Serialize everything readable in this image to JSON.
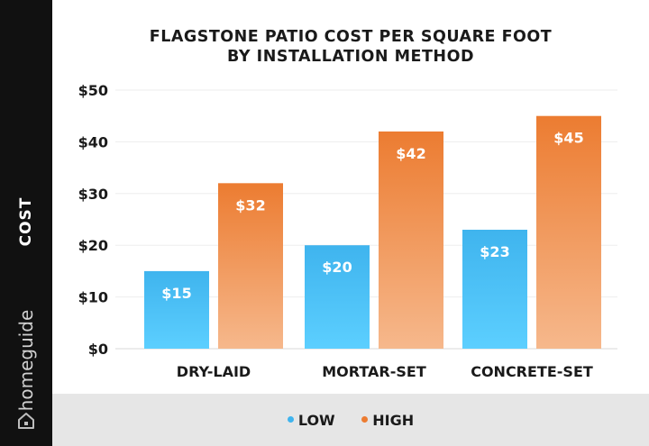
{
  "sidebar": {
    "axis_label": "COST",
    "brand": "homeguide",
    "brand_icon": "house-icon"
  },
  "colors": {
    "low_top": "#3fb4ee",
    "low_bottom": "#5ccfff",
    "high_top": "#ec7c31",
    "high_bottom": "#f6b88c",
    "sidebar": "#111111",
    "legend_bg": "#e6e6e6"
  },
  "chart_data": {
    "type": "bar",
    "title": "FLAGSTONE PATIO COST PER SQUARE FOOT",
    "subtitle": "BY INSTALLATION METHOD",
    "ylabel": "COST",
    "categories": [
      "DRY-LAID",
      "MORTAR-SET",
      "CONCRETE-SET"
    ],
    "series": [
      {
        "name": "LOW",
        "values": [
          15,
          20,
          23
        ],
        "labels": [
          "$15",
          "$20",
          "$23"
        ]
      },
      {
        "name": "HIGH",
        "values": [
          32,
          42,
          45
        ],
        "labels": [
          "$32",
          "$42",
          "$45"
        ]
      }
    ],
    "yticks": [
      "$0",
      "$10",
      "$20",
      "$30",
      "$40",
      "$50"
    ],
    "ylim": [
      0,
      50
    ],
    "grid": true,
    "legend_position": "bottom"
  }
}
